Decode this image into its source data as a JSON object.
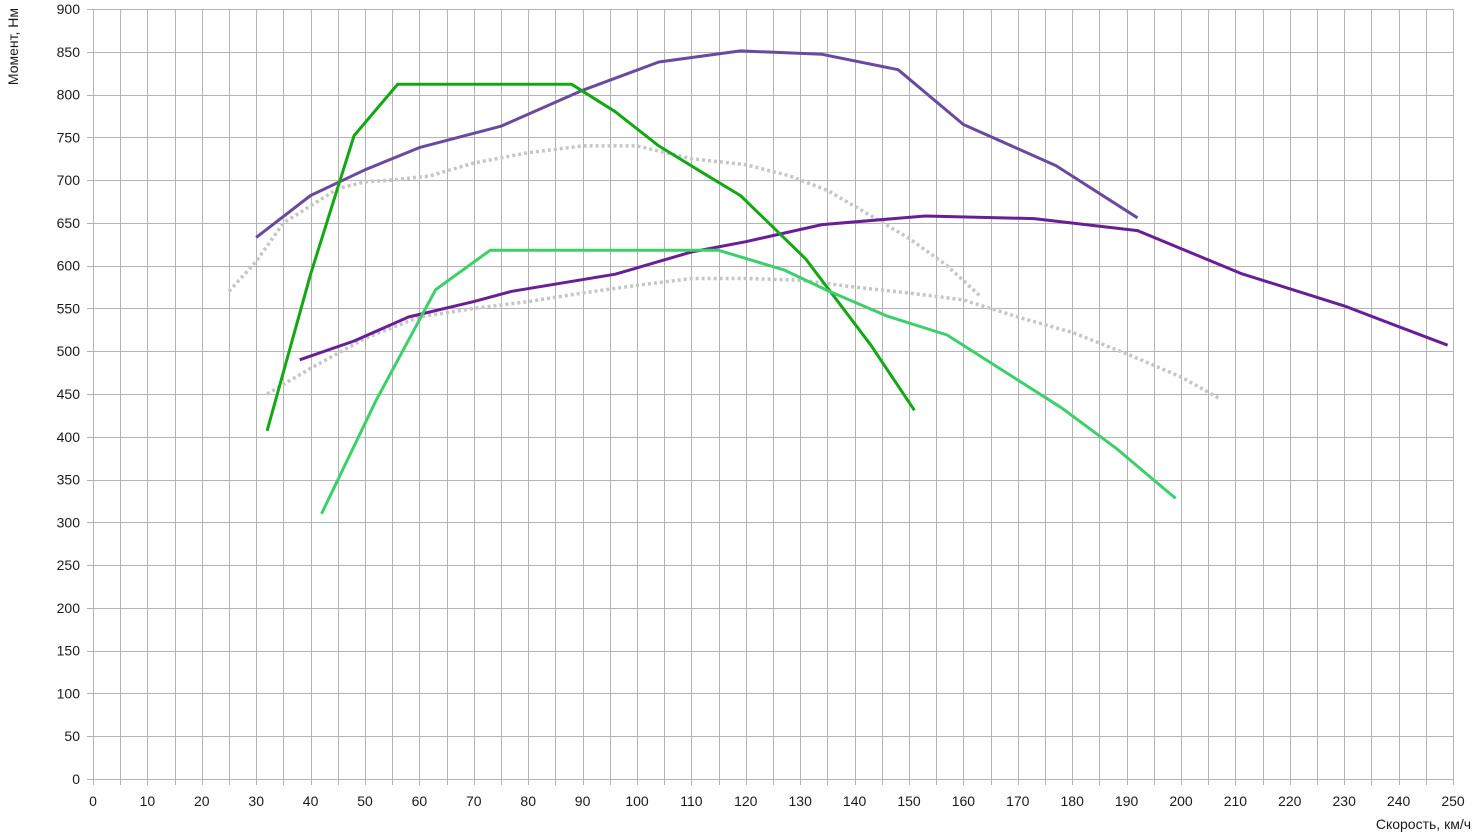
{
  "chart_data": {
    "type": "line",
    "xlabel": "Скорость, км/ч",
    "ylabel": "Момент, Нм",
    "xlim": [
      0,
      250
    ],
    "ylim": [
      0,
      900
    ],
    "x_ticks": [
      0,
      10,
      20,
      30,
      40,
      50,
      60,
      70,
      80,
      90,
      100,
      110,
      120,
      130,
      140,
      150,
      160,
      170,
      180,
      190,
      200,
      210,
      220,
      230,
      240,
      250
    ],
    "y_ticks": [
      0,
      50,
      100,
      150,
      200,
      250,
      300,
      350,
      400,
      450,
      500,
      550,
      600,
      650,
      700,
      750,
      800,
      850,
      900
    ],
    "x_minor_step": 5,
    "grid": true,
    "legend": "none",
    "series": [
      {
        "color": "#c6c6c6",
        "dashed": true,
        "points": [
          [
            25,
            570
          ],
          [
            30,
            605
          ],
          [
            35,
            650
          ],
          [
            40,
            670
          ],
          [
            45,
            690
          ],
          [
            50,
            698
          ],
          [
            55,
            700
          ],
          [
            62,
            705
          ],
          [
            70,
            720
          ],
          [
            80,
            732
          ],
          [
            90,
            740
          ],
          [
            100,
            740
          ],
          [
            110,
            725
          ],
          [
            120,
            718
          ],
          [
            128,
            705
          ],
          [
            135,
            688
          ],
          [
            142,
            662
          ],
          [
            150,
            632
          ],
          [
            157,
            600
          ],
          [
            163,
            565
          ]
        ]
      },
      {
        "color": "#c6c6c6",
        "dashed": true,
        "points": [
          [
            32,
            450
          ],
          [
            40,
            480
          ],
          [
            50,
            515
          ],
          [
            60,
            540
          ],
          [
            70,
            550
          ],
          [
            80,
            558
          ],
          [
            90,
            568
          ],
          [
            100,
            577
          ],
          [
            110,
            585
          ],
          [
            120,
            585
          ],
          [
            130,
            583
          ],
          [
            140,
            575
          ],
          [
            150,
            568
          ],
          [
            160,
            560
          ],
          [
            170,
            540
          ],
          [
            180,
            522
          ],
          [
            190,
            497
          ],
          [
            200,
            470
          ],
          [
            207,
            445
          ]
        ]
      },
      {
        "color": "#6a4aa0",
        "points": [
          [
            30,
            633
          ],
          [
            40,
            682
          ],
          [
            50,
            712
          ],
          [
            60,
            738
          ],
          [
            75,
            763
          ],
          [
            90,
            805
          ],
          [
            104,
            838
          ],
          [
            119,
            851
          ],
          [
            134,
            847
          ],
          [
            148,
            829
          ],
          [
            160,
            765
          ],
          [
            177,
            717
          ],
          [
            192,
            656
          ]
        ]
      },
      {
        "color": "#6a1e96",
        "points": [
          [
            38,
            490
          ],
          [
            48,
            512
          ],
          [
            58,
            540
          ],
          [
            70,
            558
          ],
          [
            77,
            570
          ],
          [
            96,
            590
          ],
          [
            110,
            616
          ],
          [
            120,
            628
          ],
          [
            134,
            648
          ],
          [
            153,
            658
          ],
          [
            173,
            655
          ],
          [
            192,
            641
          ],
          [
            211,
            591
          ],
          [
            230,
            553
          ],
          [
            249,
            507
          ]
        ]
      },
      {
        "color": "#13a813",
        "points": [
          [
            32,
            407
          ],
          [
            40,
            590
          ],
          [
            48,
            752
          ],
          [
            56,
            812
          ],
          [
            88,
            812
          ],
          [
            96,
            780
          ],
          [
            104,
            740
          ],
          [
            113,
            705
          ],
          [
            119,
            682
          ],
          [
            131,
            608
          ],
          [
            143,
            507
          ],
          [
            151,
            431
          ]
        ]
      },
      {
        "color": "#3ccf6a",
        "points": [
          [
            42,
            310
          ],
          [
            52,
            442
          ],
          [
            63,
            572
          ],
          [
            73,
            618
          ],
          [
            115,
            618
          ],
          [
            127,
            595
          ],
          [
            135,
            571
          ],
          [
            146,
            541
          ],
          [
            157,
            519
          ],
          [
            178,
            434
          ],
          [
            188,
            387
          ],
          [
            199,
            328
          ]
        ]
      }
    ]
  }
}
